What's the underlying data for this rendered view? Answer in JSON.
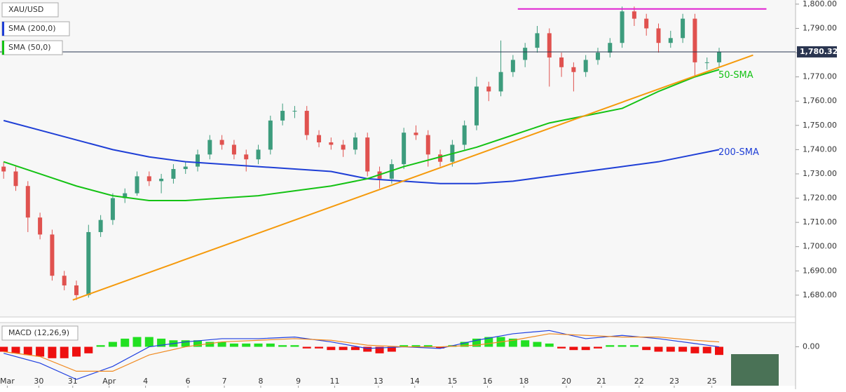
{
  "chart_data": {
    "type": "candlestick",
    "title": "XAU/USD",
    "candles": [
      [
        1733,
        1735,
        1728,
        1731
      ],
      [
        1731,
        1733,
        1723,
        1725
      ],
      [
        1725,
        1727,
        1706,
        1712
      ],
      [
        1712,
        1714,
        1703,
        1705
      ],
      [
        1705,
        1707,
        1686,
        1688
      ],
      [
        1688,
        1690,
        1682,
        1684
      ],
      [
        1684,
        1686,
        1678,
        1680
      ],
      [
        1680,
        1709,
        1679,
        1706
      ],
      [
        1706,
        1713,
        1704,
        1711
      ],
      [
        1711,
        1722,
        1709,
        1720
      ],
      [
        1720,
        1724,
        1718,
        1722
      ],
      [
        1722,
        1731,
        1721,
        1729
      ],
      [
        1729,
        1731,
        1725,
        1727
      ],
      [
        1727,
        1730,
        1722,
        1728
      ],
      [
        1728,
        1734,
        1726,
        1732
      ],
      [
        1732,
        1735,
        1730,
        1733
      ],
      [
        1733,
        1740,
        1731,
        1738
      ],
      [
        1738,
        1746,
        1736,
        1744
      ],
      [
        1744,
        1746,
        1740,
        1742
      ],
      [
        1742,
        1744,
        1736,
        1738
      ],
      [
        1738,
        1740,
        1731,
        1736
      ],
      [
        1736,
        1742,
        1734,
        1740
      ],
      [
        1740,
        1754,
        1738,
        1752
      ],
      [
        1752,
        1759,
        1750,
        1756
      ],
      [
        1756,
        1758,
        1753,
        1756
      ],
      [
        1756,
        1758,
        1744,
        1746
      ],
      [
        1746,
        1748,
        1741,
        1743
      ],
      [
        1743,
        1745,
        1740,
        1742
      ],
      [
        1742,
        1744,
        1737,
        1740
      ],
      [
        1740,
        1747,
        1738,
        1745
      ],
      [
        1745,
        1747,
        1729,
        1731
      ],
      [
        1731,
        1733,
        1724,
        1728
      ],
      [
        1728,
        1736,
        1726,
        1734
      ],
      [
        1734,
        1749,
        1732,
        1747
      ],
      [
        1747,
        1750,
        1744,
        1746
      ],
      [
        1746,
        1748,
        1733,
        1738
      ],
      [
        1738,
        1740,
        1733,
        1735
      ],
      [
        1735,
        1744,
        1733,
        1742
      ],
      [
        1742,
        1752,
        1740,
        1750
      ],
      [
        1750,
        1770,
        1748,
        1766
      ],
      [
        1766,
        1768,
        1760,
        1764
      ],
      [
        1764,
        1785,
        1762,
        1772
      ],
      [
        1772,
        1779,
        1770,
        1777
      ],
      [
        1777,
        1784,
        1774,
        1782
      ],
      [
        1782,
        1791,
        1780,
        1788
      ],
      [
        1788,
        1790,
        1766,
        1778
      ],
      [
        1778,
        1780,
        1770,
        1774
      ],
      [
        1774,
        1776,
        1764,
        1772
      ],
      [
        1772,
        1779,
        1770,
        1777
      ],
      [
        1777,
        1782,
        1775,
        1780
      ],
      [
        1780,
        1786,
        1778,
        1784
      ],
      [
        1784,
        1799,
        1782,
        1797
      ],
      [
        1797,
        1799,
        1791,
        1794
      ],
      [
        1794,
        1796,
        1787,
        1790
      ],
      [
        1790,
        1792,
        1780,
        1784
      ],
      [
        1784,
        1789,
        1782,
        1786
      ],
      [
        1786,
        1796,
        1784,
        1794
      ],
      [
        1794,
        1796,
        1770,
        1776
      ],
      [
        1776,
        1778,
        1773,
        1776
      ],
      [
        1776,
        1782,
        1774,
        1780.32
      ]
    ],
    "up_color": "#3d9c7d",
    "down_color": "#e0524f",
    "sma_x": [
      0,
      3,
      6,
      9,
      12,
      15,
      18,
      21,
      24,
      27,
      30,
      33,
      36,
      39,
      42,
      45,
      48,
      51,
      54,
      57,
      59
    ],
    "sma": [
      {
        "name": "SMA (200,0)",
        "color": "#1f3fd6",
        "label": "200-SMA",
        "values": [
          1752,
          1748,
          1744,
          1740,
          1737,
          1735,
          1734,
          1733,
          1732,
          1731,
          1728,
          1727,
          1726,
          1726,
          1727,
          1729,
          1731,
          1733,
          1735,
          1738,
          1740
        ]
      },
      {
        "name": "SMA (50,0)",
        "color": "#14c214",
        "label": "50-SMA",
        "values": [
          1735,
          1730,
          1725,
          1721,
          1719,
          1719,
          1720,
          1721,
          1723,
          1725,
          1728,
          1733,
          1737,
          1741,
          1746,
          1751,
          1754,
          1757,
          1764,
          1770,
          1773
        ]
      }
    ],
    "trend_lines": [
      {
        "color": "#f59a0c",
        "x": [
          5.7,
          61.8
        ],
        "y": [
          1678,
          1779
        ]
      },
      {
        "color": "#e020d0",
        "x": [
          42.4,
          62.9
        ],
        "y": [
          1798,
          1798
        ]
      }
    ],
    "last_price": {
      "value": 1780.32,
      "label": "1,780.32"
    },
    "xlim": [
      -0.3,
      65.3
    ],
    "ylim": [
      1671,
      1801.7
    ],
    "yticks": [
      {
        "value": 1680,
        "label": "1,680.00"
      },
      {
        "value": 1690,
        "label": "1,690.00"
      },
      {
        "value": 1700,
        "label": "1,700.00"
      },
      {
        "value": 1710,
        "label": "1,710.00"
      },
      {
        "value": 1720,
        "label": "1,720.00"
      },
      {
        "value": 1730,
        "label": "1,730.00"
      },
      {
        "value": 1740,
        "label": "1,740.00"
      },
      {
        "value": 1750,
        "label": "1,750.00"
      },
      {
        "value": 1760,
        "label": "1,760.00"
      },
      {
        "value": 1770,
        "label": "1,770.00"
      },
      {
        "value": 1780,
        "label": "1,780.00"
      },
      {
        "value": 1790,
        "label": "1,790.00"
      },
      {
        "value": 1800,
        "label": "1,800.00"
      }
    ],
    "xticks": [
      {
        "value": 0.3,
        "label": "Mar"
      },
      {
        "value": 2.9,
        "label": "30"
      },
      {
        "value": 5.7,
        "label": "31"
      },
      {
        "value": 8.7,
        "label": "Apr"
      },
      {
        "value": 11.7,
        "label": "4"
      },
      {
        "value": 15.2,
        "label": "6"
      },
      {
        "value": 18.2,
        "label": "7"
      },
      {
        "value": 21.2,
        "label": "8"
      },
      {
        "value": 24.3,
        "label": "9"
      },
      {
        "value": 27.3,
        "label": "11"
      },
      {
        "value": 30.9,
        "label": "13"
      },
      {
        "value": 33.9,
        "label": "14"
      },
      {
        "value": 37,
        "label": "15"
      },
      {
        "value": 39.9,
        "label": "16"
      },
      {
        "value": 42.9,
        "label": "18"
      },
      {
        "value": 46.4,
        "label": "20"
      },
      {
        "value": 49.3,
        "label": "21"
      },
      {
        "value": 52.4,
        "label": "22"
      },
      {
        "value": 55.3,
        "label": "23"
      },
      {
        "value": 58.4,
        "label": "25"
      }
    ],
    "macd": {
      "name": "MACD (12,26,9)",
      "ylim": [
        -2.3,
        1.4
      ],
      "yticks": [
        {
          "value": 0,
          "label": "0.00"
        }
      ],
      "histogram": [
        -0.3,
        -0.4,
        -0.5,
        -0.6,
        -0.7,
        -0.7,
        -0.6,
        -0.4,
        0.1,
        0.3,
        0.5,
        0.6,
        0.6,
        0.5,
        0.4,
        0.4,
        0.4,
        0.3,
        0.3,
        0.2,
        0.2,
        0.2,
        0.2,
        0.1,
        0.1,
        -0.1,
        -0.1,
        -0.2,
        -0.2,
        -0.2,
        -0.3,
        -0.4,
        -0.3,
        0.1,
        0.1,
        0.1,
        -0.1,
        0.1,
        0.3,
        0.5,
        0.6,
        0.6,
        0.5,
        0.4,
        0.3,
        0.2,
        -0.1,
        -0.2,
        -0.2,
        -0.1,
        0.1,
        0.1,
        0.1,
        -0.2,
        -0.3,
        -0.3,
        -0.3,
        -0.4,
        -0.4,
        -0.5
      ],
      "pos_color": "#22e022",
      "neg_color": "#ee1010",
      "macd_line": {
        "color": "#2040e0",
        "values": [
          -0.4,
          -1.0,
          -2.0,
          -1.2,
          0.0,
          0.3,
          0.5,
          0.5,
          0.6,
          0.3,
          -0.1,
          0.0,
          -0.1,
          0.4,
          0.8,
          1.0,
          0.5,
          0.7,
          0.5,
          0.2,
          0.0
        ]
      },
      "signal_line": {
        "color": "#f08a20",
        "values": [
          -0.3,
          -0.6,
          -1.5,
          -1.5,
          -0.5,
          0.0,
          0.3,
          0.4,
          0.5,
          0.4,
          0.1,
          0.0,
          0.0,
          0.1,
          0.4,
          0.8,
          0.7,
          0.6,
          0.6,
          0.4,
          0.3
        ]
      }
    }
  }
}
